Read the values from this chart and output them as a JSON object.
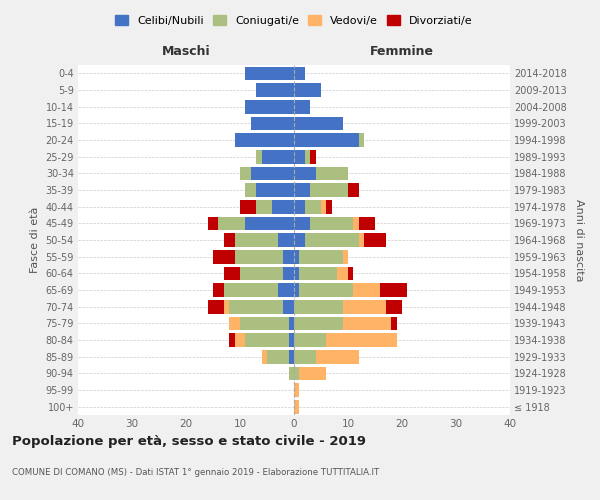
{
  "age_groups": [
    "100+",
    "95-99",
    "90-94",
    "85-89",
    "80-84",
    "75-79",
    "70-74",
    "65-69",
    "60-64",
    "55-59",
    "50-54",
    "45-49",
    "40-44",
    "35-39",
    "30-34",
    "25-29",
    "20-24",
    "15-19",
    "10-14",
    "5-9",
    "0-4"
  ],
  "birth_years": [
    "≤ 1918",
    "1919-1923",
    "1924-1928",
    "1929-1933",
    "1934-1938",
    "1939-1943",
    "1944-1948",
    "1949-1953",
    "1954-1958",
    "1959-1963",
    "1964-1968",
    "1969-1973",
    "1974-1978",
    "1979-1983",
    "1984-1988",
    "1989-1993",
    "1994-1998",
    "1999-2003",
    "2004-2008",
    "2009-2013",
    "2014-2018"
  ],
  "maschi": {
    "celibi": [
      0,
      0,
      0,
      1,
      1,
      1,
      2,
      3,
      2,
      2,
      3,
      9,
      4,
      7,
      8,
      6,
      11,
      8,
      9,
      7,
      9
    ],
    "coniugati": [
      0,
      0,
      1,
      4,
      8,
      9,
      10,
      10,
      8,
      9,
      8,
      5,
      3,
      2,
      2,
      1,
      0,
      0,
      0,
      0,
      0
    ],
    "vedovi": [
      0,
      0,
      0,
      1,
      2,
      2,
      1,
      0,
      0,
      0,
      0,
      0,
      0,
      0,
      0,
      0,
      0,
      0,
      0,
      0,
      0
    ],
    "divorziati": [
      0,
      0,
      0,
      0,
      1,
      0,
      3,
      2,
      3,
      4,
      2,
      2,
      3,
      0,
      0,
      0,
      0,
      0,
      0,
      0,
      0
    ]
  },
  "femmine": {
    "nubili": [
      0,
      0,
      0,
      0,
      0,
      0,
      0,
      1,
      1,
      1,
      2,
      3,
      2,
      3,
      4,
      2,
      12,
      9,
      3,
      5,
      2
    ],
    "coniugate": [
      0,
      0,
      1,
      4,
      6,
      9,
      9,
      10,
      7,
      8,
      10,
      8,
      3,
      7,
      6,
      1,
      1,
      0,
      0,
      0,
      0
    ],
    "vedove": [
      1,
      1,
      5,
      8,
      13,
      9,
      8,
      5,
      2,
      1,
      1,
      1,
      1,
      0,
      0,
      0,
      0,
      0,
      0,
      0,
      0
    ],
    "divorziate": [
      0,
      0,
      0,
      0,
      0,
      1,
      3,
      5,
      1,
      0,
      4,
      3,
      1,
      2,
      0,
      1,
      0,
      0,
      0,
      0,
      0
    ]
  },
  "colors": {
    "celibi_nubili": "#4472C4",
    "coniugati": "#AABF80",
    "vedovi": "#FFB366",
    "divorziati": "#C00000"
  },
  "title": "Popolazione per età, sesso e stato civile - 2019",
  "subtitle": "COMUNE DI COMANO (MS) - Dati ISTAT 1° gennaio 2019 - Elaborazione TUTTITALIA.IT",
  "xlabel_left": "Maschi",
  "xlabel_right": "Femmine",
  "ylabel_left": "Fasce di età",
  "ylabel_right": "Anni di nascita",
  "xlim": 40,
  "legend_labels": [
    "Celibi/Nubili",
    "Coniugati/e",
    "Vedovi/e",
    "Divorziati/e"
  ],
  "background_color": "#f0f0f0",
  "plot_bg_color": "#ffffff"
}
